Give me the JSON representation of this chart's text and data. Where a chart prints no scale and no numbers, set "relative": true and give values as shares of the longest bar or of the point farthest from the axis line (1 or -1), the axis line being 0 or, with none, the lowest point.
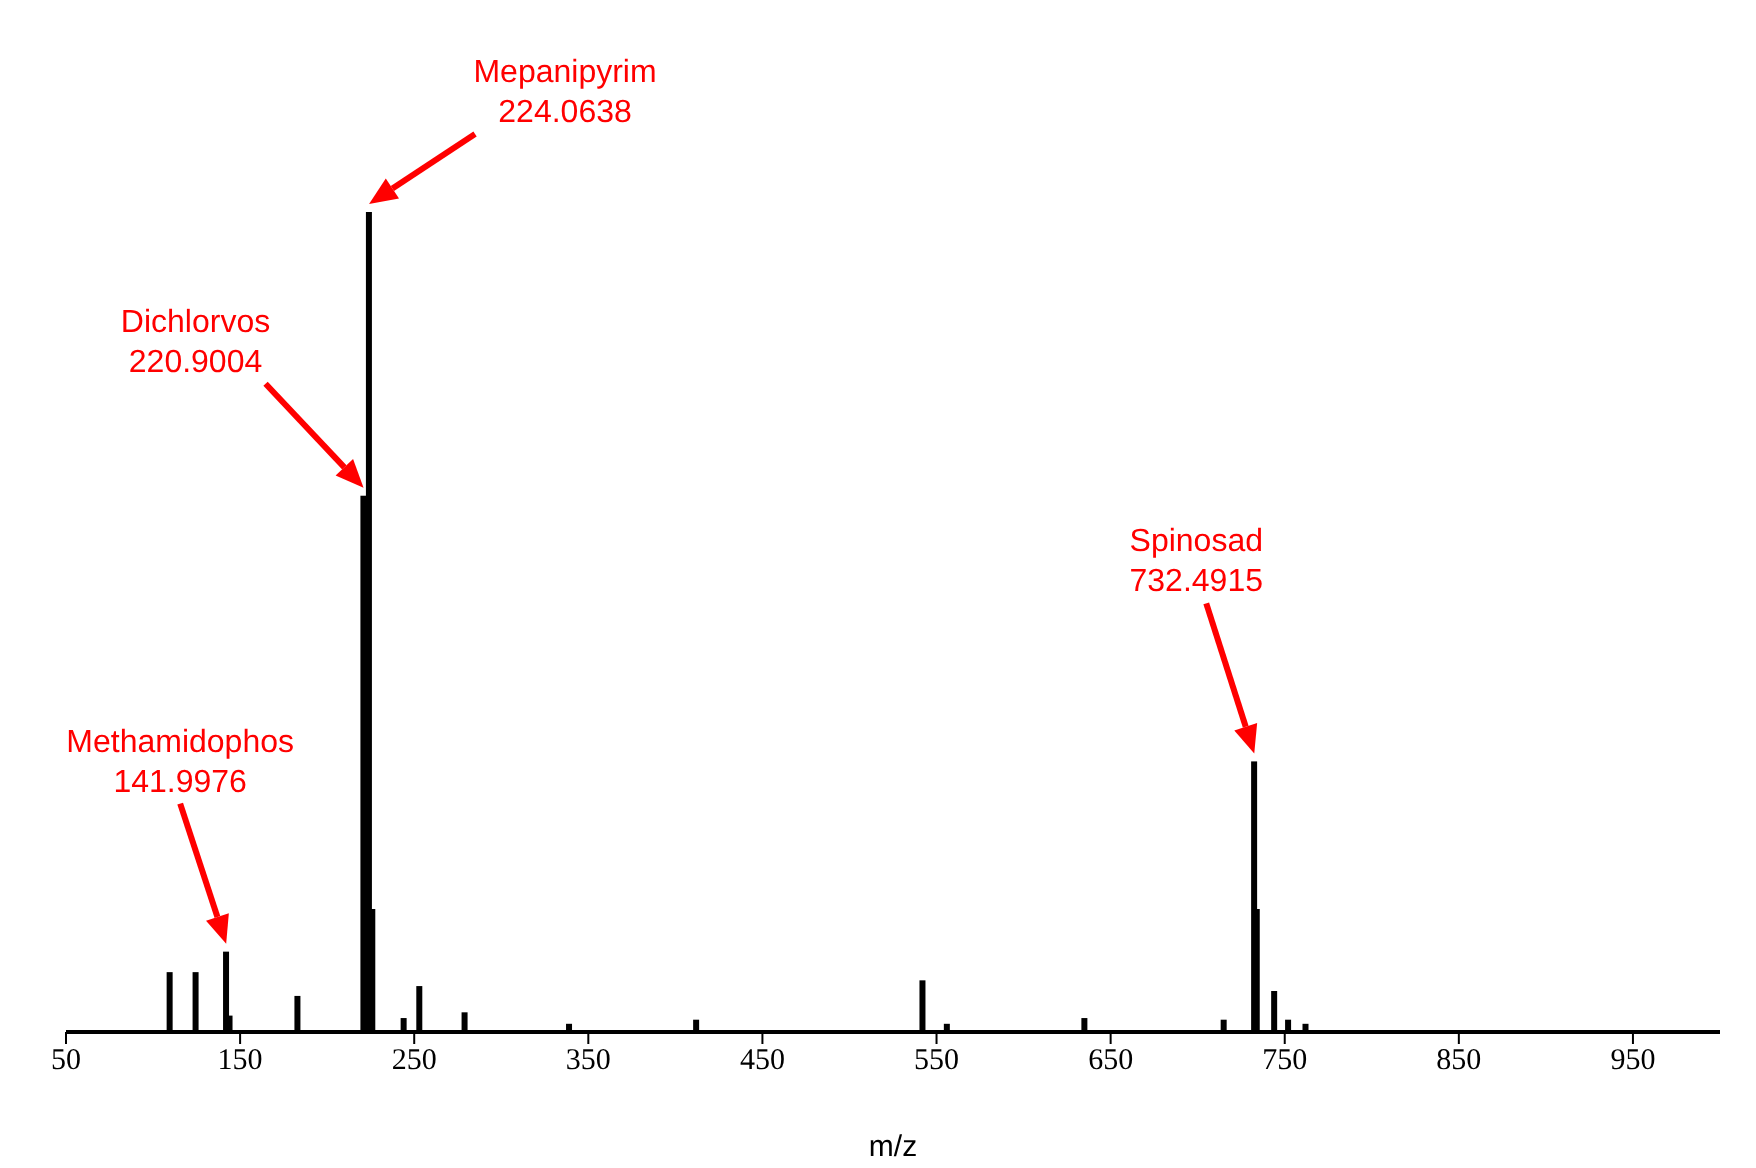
{
  "chart_data": {
    "type": "bar",
    "relative": true,
    "xlabel": "m/z",
    "color": "#000000",
    "x": [
      109.6,
      124.5,
      142,
      144,
      183,
      220.9,
      224.06,
      226,
      244,
      253,
      279,
      339,
      412,
      542,
      556,
      635,
      715,
      732.49,
      734,
      744,
      752,
      762
    ],
    "values": [
      0.073,
      0.073,
      0.098,
      0.02,
      0.044,
      0.654,
      1,
      0.15,
      0.017,
      0.056,
      0.024,
      0.01,
      0.015,
      0.063,
      0.01,
      0.017,
      0.015,
      0.33,
      0.15,
      0.05,
      0.015,
      0.01
    ],
    "xlim": [
      50,
      1000
    ],
    "xticks": [
      50,
      150,
      250,
      350,
      450,
      550,
      650,
      750,
      850,
      950
    ],
    "grid": false,
    "legend": false,
    "annotations": [
      "Methamidophos\n141.9976",
      "Dichlorvos\n220.9004",
      "Mepanipyrim\n224.0638",
      "Spinosad\n732.4915"
    ]
  }
}
